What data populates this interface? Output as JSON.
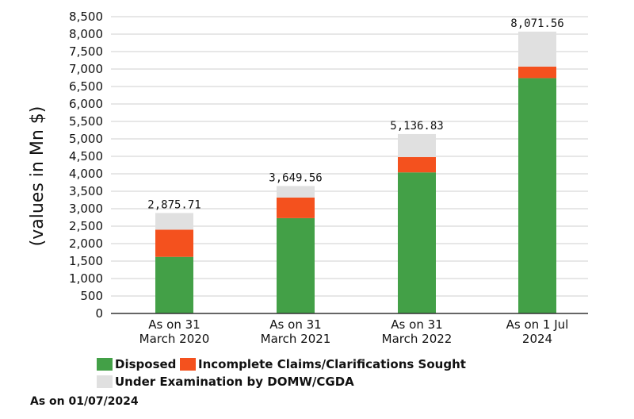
{
  "chart_data": {
    "type": "bar",
    "stacked": true,
    "ylabel": "(values in Mn $)",
    "ylim": [
      0,
      8500
    ],
    "yticks": [
      "0",
      "500",
      "1,000",
      "1,500",
      "2,000",
      "2,500",
      "3,000",
      "3,500",
      "4,000",
      "4,500",
      "5,000",
      "5,500",
      "6,000",
      "6,500",
      "7,000",
      "7,500",
      "8,000",
      "8,500"
    ],
    "categories": [
      [
        "As on 31",
        "March 2020"
      ],
      [
        "As on 31",
        "March 2021"
      ],
      [
        "As on 31",
        "March 2022"
      ],
      [
        "As on 1 Jul",
        "2024"
      ]
    ],
    "series": [
      {
        "name": "Disposed",
        "color": "#43a047",
        "values": [
          1620,
          2730,
          4040,
          6740
        ]
      },
      {
        "name": "Incomplete Claims/Clarifications Sought",
        "color": "#f4511e",
        "values": [
          780,
          590,
          440,
          330
        ]
      },
      {
        "name": "Under Examination by DOMW/CGDA",
        "color": "#e0e0e0",
        "values": [
          475.71,
          329.56,
          656.83,
          1001.56
        ]
      }
    ],
    "totals": [
      "2,875.71",
      "3,649.56",
      "5,136.83",
      "8,071.56"
    ],
    "legend_position": "bottom"
  },
  "footnote": "As on 01/07/2024"
}
